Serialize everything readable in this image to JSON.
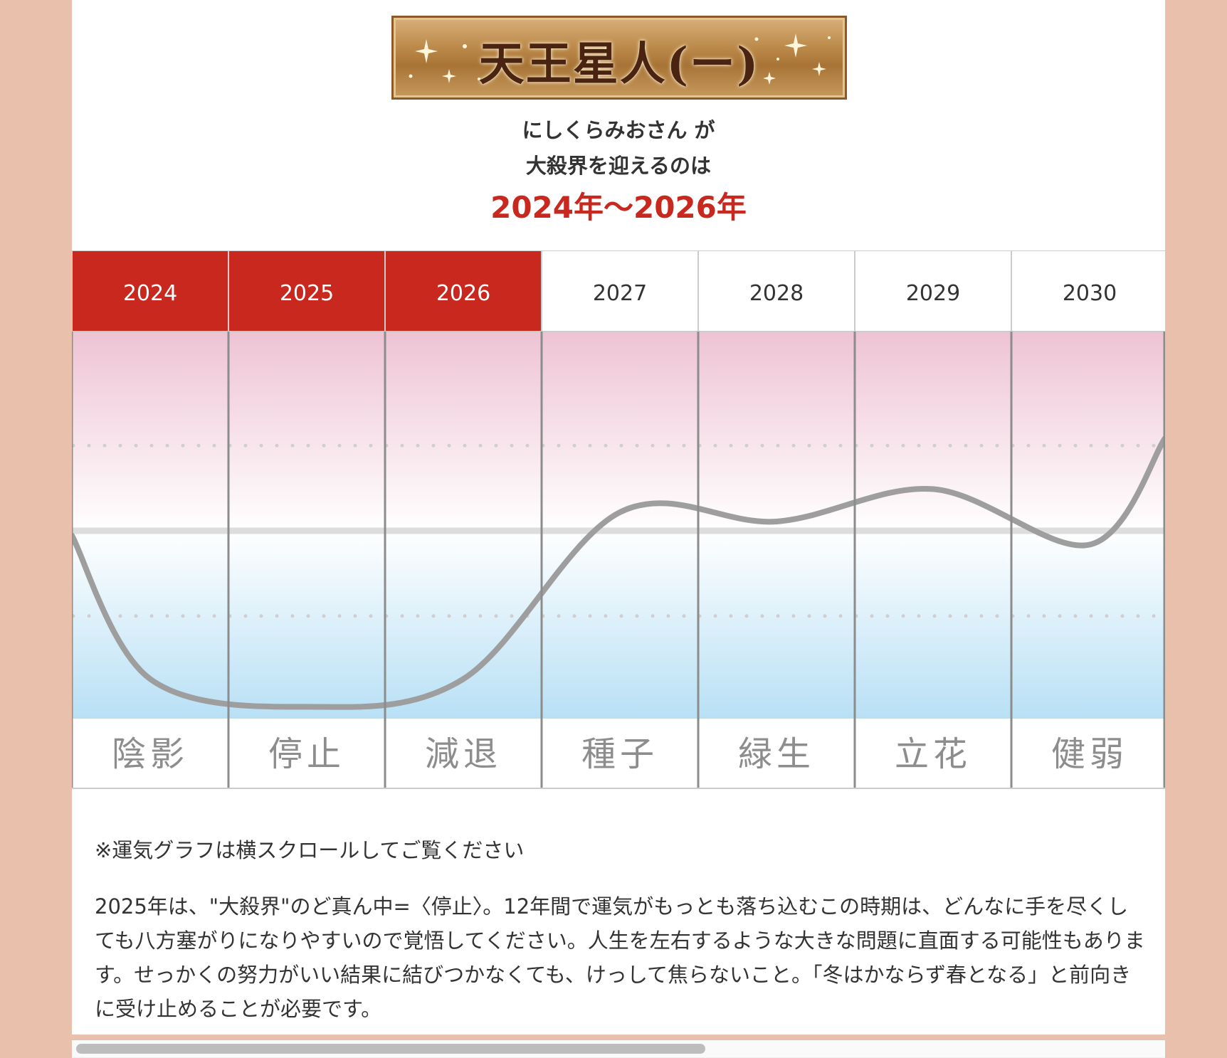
{
  "header": {
    "star_type": "天王星人(ー)",
    "line1": "にしくらみおさん が",
    "line2": "大殺界を迎えるのは",
    "period": "2024年〜2026年"
  },
  "chart_data": {
    "type": "line",
    "categories": [
      "2024",
      "2025",
      "2026",
      "2027",
      "2028",
      "2029",
      "2030"
    ],
    "phases": [
      "陰影",
      "停止",
      "減退",
      "種子",
      "緑生",
      "立花",
      "健弱"
    ],
    "highlighted": [
      "2024",
      "2025",
      "2026"
    ],
    "values": [
      -1.6,
      -1.9,
      -1.6,
      0.2,
      0.1,
      0.45,
      -0.15
    ],
    "ylim": [
      -2,
      2
    ],
    "reference_lines": [
      1,
      -1
    ],
    "grid": false,
    "colors": {
      "highlight": "#c8281e",
      "curve": "#9e9e9e",
      "upper": "#eec3d4",
      "lower": "#b8e0f5"
    }
  },
  "scroll_note": "※運気グラフは横スクロールしてご覧ください",
  "description": "2025年は、\"大殺界\"のど真ん中=〈停止〉。12年間で運気がもっとも落ち込むこの時期は、どんなに手を尽くしても八方塞がりになりやすいので覚悟してください。人生を左右するような大きな問題に直面する可能性もあります。せっかくの努力がいい結果に結びつかなくても、けっして焦らないこと。「冬はかならず春となる」と前向きに受け止めることが必要です。"
}
